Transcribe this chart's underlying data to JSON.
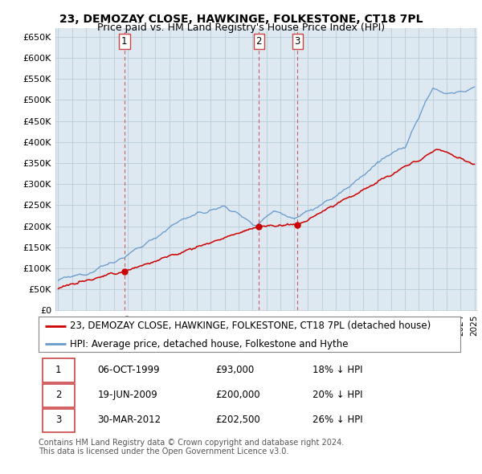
{
  "title": "23, DEMOZAY CLOSE, HAWKINGE, FOLKESTONE, CT18 7PL",
  "subtitle": "Price paid vs. HM Land Registry's House Price Index (HPI)",
  "ylabel_ticks": [
    "£0",
    "£50K",
    "£100K",
    "£150K",
    "£200K",
    "£250K",
    "£300K",
    "£350K",
    "£400K",
    "£450K",
    "£500K",
    "£550K",
    "£600K",
    "£650K"
  ],
  "ytick_vals": [
    0,
    50000,
    100000,
    150000,
    200000,
    250000,
    300000,
    350000,
    400000,
    450000,
    500000,
    550000,
    600000,
    650000
  ],
  "ylim": [
    0,
    670000
  ],
  "background_color": "#ffffff",
  "chart_bg_color": "#dde8f0",
  "grid_color": "#b8ccd8",
  "sale_color": "#cc0000",
  "hpi_color": "#6699cc",
  "sale_dates": [
    1999.77,
    2009.47,
    2012.25
  ],
  "sale_prices": [
    93000,
    200000,
    202500
  ],
  "sale_labels": [
    "1",
    "2",
    "3"
  ],
  "vline_color": "#cc4444",
  "legend_sale_label": "23, DEMOZAY CLOSE, HAWKINGE, FOLKESTONE, CT18 7PL (detached house)",
  "legend_hpi_label": "HPI: Average price, detached house, Folkestone and Hythe",
  "table_rows": [
    [
      "1",
      "06-OCT-1999",
      "£93,000",
      "18% ↓ HPI"
    ],
    [
      "2",
      "19-JUN-2009",
      "£200,000",
      "20% ↓ HPI"
    ],
    [
      "3",
      "30-MAR-2012",
      "£202,500",
      "26% ↓ HPI"
    ]
  ],
  "footer": "Contains HM Land Registry data © Crown copyright and database right 2024.\nThis data is licensed under the Open Government Licence v3.0.",
  "title_fontsize": 10,
  "subtitle_fontsize": 9,
  "tick_fontsize": 8,
  "legend_fontsize": 8.5,
  "table_fontsize": 8.5,
  "footer_fontsize": 7
}
